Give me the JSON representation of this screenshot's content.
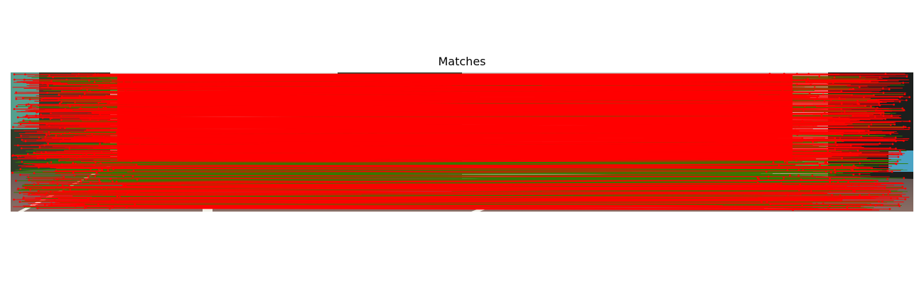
{
  "figure": {
    "title": "Matches"
  },
  "colors": {
    "match_line_inlier": "#2e7d00",
    "match_line_outlier": "#ff0000",
    "keypoint": "#ff0000",
    "road": "#7a625c",
    "sky": "#d8e6e0",
    "foliage": "#2f3d2a",
    "lane_marking": "#f2efe6"
  },
  "images": {
    "layout": "side-by-side",
    "content": "road-scene"
  }
}
